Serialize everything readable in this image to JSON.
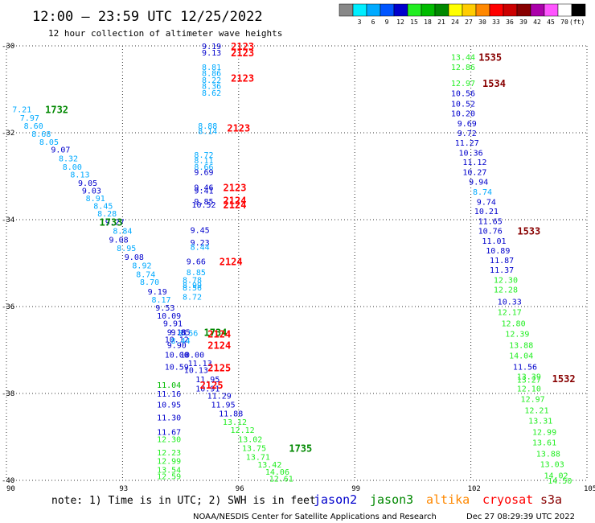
{
  "header": {
    "title": "12:00 – 23:59 UTC 12/25/2022",
    "subtitle": "12 hour collection of altimeter wave heights"
  },
  "legend": {
    "unit": "(ft)",
    "bins": [
      {
        "color": "#888888",
        "label": ""
      },
      {
        "color": "#00eeff",
        "label": "3"
      },
      {
        "color": "#00aaff",
        "label": "6"
      },
      {
        "color": "#0055ff",
        "label": "9"
      },
      {
        "color": "#0000cc",
        "label": "12"
      },
      {
        "color": "#22ee22",
        "label": "15"
      },
      {
        "color": "#00bb00",
        "label": "18"
      },
      {
        "color": "#008800",
        "label": "21"
      },
      {
        "color": "#ffff00",
        "label": "24"
      },
      {
        "color": "#ffcc00",
        "label": "27"
      },
      {
        "color": "#ff8800",
        "label": "30"
      },
      {
        "color": "#ff0000",
        "label": "33"
      },
      {
        "color": "#cc0000",
        "label": "36"
      },
      {
        "color": "#880000",
        "label": "39"
      },
      {
        "color": "#aa00aa",
        "label": "42"
      },
      {
        "color": "#ff55ff",
        "label": "45"
      },
      {
        "color": "#ffffff",
        "label": "70"
      },
      {
        "color": "#000000",
        "label": ""
      }
    ]
  },
  "note": "note: 1) Time is in UTC; 2) SWH is in feet",
  "satellites": [
    {
      "name": "jason2",
      "color": "#0000cc"
    },
    {
      "name": "jason3",
      "color": "#008800"
    },
    {
      "name": "altika",
      "color": "#ff8800"
    },
    {
      "name": "cryosat",
      "color": "#ff0000"
    },
    {
      "name": "s3a",
      "color": "#880000"
    }
  ],
  "footer": {
    "credit": "NOAA/NESDIS Center for Satellite Applications and Research",
    "timestamp": "Dec 27 08:29:39 UTC 2022"
  },
  "chart_data": {
    "type": "scatter",
    "title": "12:00 – 23:59 UTC 12/25/2022",
    "subtitle": "12 hour collection of altimeter wave heights",
    "xlim": [
      90,
      105
    ],
    "ylim": [
      -40,
      -30
    ],
    "xticks": [
      90,
      93,
      96,
      99,
      102,
      105
    ],
    "yticks": [
      -30,
      -32,
      -34,
      -36,
      -38,
      -40
    ],
    "xtick_labels": [
      "90",
      "93",
      "96",
      "99",
      "102",
      "105"
    ],
    "ytick_labels": [
      "-30",
      "-32",
      "-34",
      "-36",
      "-38",
      "-40"
    ],
    "grid": true,
    "points": [
      {
        "x": 95.3,
        "y": -30.0,
        "v": "9.19",
        "c": "#0000cc"
      },
      {
        "x": 95.3,
        "y": -30.15,
        "v": "9.13",
        "c": "#0000cc"
      },
      {
        "x": 95.3,
        "y": -30.48,
        "v": "8.81",
        "c": "#00aaff"
      },
      {
        "x": 95.3,
        "y": -30.62,
        "v": "8.86",
        "c": "#00aaff"
      },
      {
        "x": 95.3,
        "y": -30.78,
        "v": "8.22",
        "c": "#00aaff"
      },
      {
        "x": 95.3,
        "y": -30.92,
        "v": "8.36",
        "c": "#00aaff"
      },
      {
        "x": 95.3,
        "y": -31.07,
        "v": "8.62",
        "c": "#00aaff"
      },
      {
        "x": 95.2,
        "y": -31.83,
        "v": "8.88",
        "c": "#00aaff"
      },
      {
        "x": 95.2,
        "y": -31.95,
        "v": "8.14",
        "c": "#00aaff"
      },
      {
        "x": 95.1,
        "y": -32.5,
        "v": "8.72",
        "c": "#00aaff"
      },
      {
        "x": 95.1,
        "y": -32.63,
        "v": "8.11",
        "c": "#00aaff"
      },
      {
        "x": 95.1,
        "y": -32.78,
        "v": "8.66",
        "c": "#00aaff"
      },
      {
        "x": 95.1,
        "y": -32.9,
        "v": "9.69",
        "c": "#0000cc"
      },
      {
        "x": 95.1,
        "y": -33.25,
        "v": "9.46",
        "c": "#0000cc"
      },
      {
        "x": 95.1,
        "y": -33.32,
        "v": "9.41",
        "c": "#0000cc"
      },
      {
        "x": 95.1,
        "y": -33.57,
        "v": "9.85",
        "c": "#0000cc"
      },
      {
        "x": 95.1,
        "y": -33.65,
        "v": "10.52",
        "c": "#0000cc"
      },
      {
        "x": 95.0,
        "y": -34.23,
        "v": "9.45",
        "c": "#0000cc"
      },
      {
        "x": 95.0,
        "y": -34.52,
        "v": "9.23",
        "c": "#0000cc"
      },
      {
        "x": 95.0,
        "y": -34.62,
        "v": "8.44",
        "c": "#00aaff"
      },
      {
        "x": 94.9,
        "y": -34.95,
        "v": "9.66",
        "c": "#0000cc"
      },
      {
        "x": 94.9,
        "y": -35.2,
        "v": "8.85",
        "c": "#00aaff"
      },
      {
        "x": 94.8,
        "y": -35.38,
        "v": "8.78",
        "c": "#00aaff"
      },
      {
        "x": 94.8,
        "y": -35.5,
        "v": "8.99",
        "c": "#00aaff"
      },
      {
        "x": 94.8,
        "y": -35.56,
        "v": "8.56",
        "c": "#00aaff"
      },
      {
        "x": 94.8,
        "y": -35.77,
        "v": "8.72",
        "c": "#00aaff"
      },
      {
        "x": 94.4,
        "y": -36.58,
        "v": "9.18",
        "c": "#0000cc"
      },
      {
        "x": 94.7,
        "y": -36.6,
        "v": "8.56",
        "c": "#00aaff"
      },
      {
        "x": 94.4,
        "y": -36.75,
        "v": "10.12",
        "c": "#0000cc"
      },
      {
        "x": 94.4,
        "y": -36.88,
        "v": "9.90",
        "c": "#0000cc"
      },
      {
        "x": 94.4,
        "y": -37.1,
        "v": "10.00",
        "c": "#0000cc"
      },
      {
        "x": 94.8,
        "y": -37.1,
        "v": "10.00",
        "c": "#0000cc"
      },
      {
        "x": 95.0,
        "y": -37.3,
        "v": "11.13",
        "c": "#0000cc"
      },
      {
        "x": 94.4,
        "y": -37.38,
        "v": "10.59",
        "c": "#0000cc"
      },
      {
        "x": 94.9,
        "y": -37.45,
        "v": "10.13",
        "c": "#0000cc"
      },
      {
        "x": 95.2,
        "y": -37.67,
        "v": "11.95",
        "c": "#0000cc"
      },
      {
        "x": 94.2,
        "y": -37.8,
        "v": "11.04",
        "c": "#00bb00"
      },
      {
        "x": 95.2,
        "y": -37.88,
        "v": "10.91",
        "c": "#0000cc"
      },
      {
        "x": 94.2,
        "y": -38.0,
        "v": "11.16",
        "c": "#0000cc"
      },
      {
        "x": 95.5,
        "y": -38.05,
        "v": "11.29",
        "c": "#0000cc"
      },
      {
        "x": 94.2,
        "y": -38.25,
        "v": "10.95",
        "c": "#0000cc"
      },
      {
        "x": 95.6,
        "y": -38.25,
        "v": "11.95",
        "c": "#0000cc"
      },
      {
        "x": 95.8,
        "y": -38.45,
        "v": "11.88",
        "c": "#0000cc"
      },
      {
        "x": 94.2,
        "y": -38.55,
        "v": "11.30",
        "c": "#0000cc"
      },
      {
        "x": 95.9,
        "y": -38.65,
        "v": "13.12",
        "c": "#22ee22"
      },
      {
        "x": 96.1,
        "y": -38.83,
        "v": "12.12",
        "c": "#22ee22"
      },
      {
        "x": 94.2,
        "y": -38.88,
        "v": "11.67",
        "c": "#0000cc"
      },
      {
        "x": 94.2,
        "y": -39.05,
        "v": "12.30",
        "c": "#22ee22"
      },
      {
        "x": 96.3,
        "y": -39.05,
        "v": "13.02",
        "c": "#22ee22"
      },
      {
        "x": 96.4,
        "y": -39.25,
        "v": "13.75",
        "c": "#22ee22"
      },
      {
        "x": 94.2,
        "y": -39.35,
        "v": "12.23",
        "c": "#22ee22"
      },
      {
        "x": 96.5,
        "y": -39.45,
        "v": "13.71",
        "c": "#22ee22"
      },
      {
        "x": 94.2,
        "y": -39.55,
        "v": "12.99",
        "c": "#22ee22"
      },
      {
        "x": 96.8,
        "y": -39.63,
        "v": "13.42",
        "c": "#22ee22"
      },
      {
        "x": 94.2,
        "y": -39.75,
        "v": "13.54",
        "c": "#22ee22"
      },
      {
        "x": 97.0,
        "y": -39.8,
        "v": "14.06",
        "c": "#22ee22"
      },
      {
        "x": 94.2,
        "y": -39.9,
        "v": "12.59",
        "c": "#22ee22"
      },
      {
        "x": 97.1,
        "y": -39.95,
        "v": "12.61",
        "c": "#22ee22"
      },
      {
        "x": 90.4,
        "y": -31.45,
        "v": "7.21",
        "c": "#00aaff"
      },
      {
        "x": 90.6,
        "y": -31.65,
        "v": "7.97",
        "c": "#00aaff"
      },
      {
        "x": 90.7,
        "y": -31.83,
        "v": "8.60",
        "c": "#00aaff"
      },
      {
        "x": 90.9,
        "y": -32.02,
        "v": "8.68",
        "c": "#00aaff"
      },
      {
        "x": 91.1,
        "y": -32.2,
        "v": "8.05",
        "c": "#00aaff"
      },
      {
        "x": 91.4,
        "y": -32.38,
        "v": "9.07",
        "c": "#0000cc"
      },
      {
        "x": 91.6,
        "y": -32.58,
        "v": "8.32",
        "c": "#00aaff"
      },
      {
        "x": 91.7,
        "y": -32.78,
        "v": "8.00",
        "c": "#00aaff"
      },
      {
        "x": 91.9,
        "y": -32.95,
        "v": "8.13",
        "c": "#00aaff"
      },
      {
        "x": 92.1,
        "y": -33.15,
        "v": "9.05",
        "c": "#0000cc"
      },
      {
        "x": 92.2,
        "y": -33.32,
        "v": "9.03",
        "c": "#0000cc"
      },
      {
        "x": 92.3,
        "y": -33.5,
        "v": "8.91",
        "c": "#00aaff"
      },
      {
        "x": 92.5,
        "y": -33.68,
        "v": "8.45",
        "c": "#00aaff"
      },
      {
        "x": 92.6,
        "y": -33.85,
        "v": "8.28",
        "c": "#00aaff"
      },
      {
        "x": 92.8,
        "y": -34.05,
        "v": "9.27",
        "c": "#0000cc"
      },
      {
        "x": 93.0,
        "y": -34.25,
        "v": "8.84",
        "c": "#00aaff"
      },
      {
        "x": 92.9,
        "y": -34.45,
        "v": "9.08",
        "c": "#0000cc"
      },
      {
        "x": 93.1,
        "y": -34.65,
        "v": "8.95",
        "c": "#00aaff"
      },
      {
        "x": 93.3,
        "y": -34.85,
        "v": "9.08",
        "c": "#0000cc"
      },
      {
        "x": 93.5,
        "y": -35.05,
        "v": "8.92",
        "c": "#00aaff"
      },
      {
        "x": 93.6,
        "y": -35.25,
        "v": "8.74",
        "c": "#00aaff"
      },
      {
        "x": 93.7,
        "y": -35.43,
        "v": "8.70",
        "c": "#00aaff"
      },
      {
        "x": 93.9,
        "y": -35.65,
        "v": "9.19",
        "c": "#0000cc"
      },
      {
        "x": 94.0,
        "y": -35.83,
        "v": "8.17",
        "c": "#00aaff"
      },
      {
        "x": 94.1,
        "y": -36.02,
        "v": "9.53",
        "c": "#0000cc"
      },
      {
        "x": 94.2,
        "y": -36.2,
        "v": "10.09",
        "c": "#0000cc"
      },
      {
        "x": 94.3,
        "y": -36.38,
        "v": "9.91",
        "c": "#0000cc"
      },
      {
        "x": 94.5,
        "y": -36.58,
        "v": "9.85",
        "c": "#0000cc"
      },
      {
        "x": 94.5,
        "y": -36.78,
        "v": "8.44",
        "c": "#00aaff"
      },
      {
        "x": 101.8,
        "y": -30.25,
        "v": "13.44",
        "c": "#22ee22"
      },
      {
        "x": 101.8,
        "y": -30.48,
        "v": "12.86",
        "c": "#22ee22"
      },
      {
        "x": 101.8,
        "y": -30.85,
        "v": "12.97",
        "c": "#22ee22"
      },
      {
        "x": 101.8,
        "y": -31.08,
        "v": "10.56",
        "c": "#0000cc"
      },
      {
        "x": 101.8,
        "y": -31.32,
        "v": "10.52",
        "c": "#0000cc"
      },
      {
        "x": 101.8,
        "y": -31.55,
        "v": "10.20",
        "c": "#0000cc"
      },
      {
        "x": 101.9,
        "y": -31.78,
        "v": "9.69",
        "c": "#0000cc"
      },
      {
        "x": 101.9,
        "y": -32.0,
        "v": "9.72",
        "c": "#0000cc"
      },
      {
        "x": 101.9,
        "y": -32.22,
        "v": "11.27",
        "c": "#0000cc"
      },
      {
        "x": 102.0,
        "y": -32.45,
        "v": "10.36",
        "c": "#0000cc"
      },
      {
        "x": 102.1,
        "y": -32.67,
        "v": "11.12",
        "c": "#0000cc"
      },
      {
        "x": 102.1,
        "y": -32.9,
        "v": "10.27",
        "c": "#0000cc"
      },
      {
        "x": 102.2,
        "y": -33.12,
        "v": "9.94",
        "c": "#0000cc"
      },
      {
        "x": 102.3,
        "y": -33.35,
        "v": "8.74",
        "c": "#00aaff"
      },
      {
        "x": 102.4,
        "y": -33.58,
        "v": "9.74",
        "c": "#0000cc"
      },
      {
        "x": 102.4,
        "y": -33.8,
        "v": "10.21",
        "c": "#0000cc"
      },
      {
        "x": 102.5,
        "y": -34.03,
        "v": "11.65",
        "c": "#0000cc"
      },
      {
        "x": 102.5,
        "y": -34.25,
        "v": "10.76",
        "c": "#0000cc"
      },
      {
        "x": 102.6,
        "y": -34.48,
        "v": "11.01",
        "c": "#0000cc"
      },
      {
        "x": 102.7,
        "y": -34.7,
        "v": "10.89",
        "c": "#0000cc"
      },
      {
        "x": 102.8,
        "y": -34.93,
        "v": "11.87",
        "c": "#0000cc"
      },
      {
        "x": 102.8,
        "y": -35.15,
        "v": "11.37",
        "c": "#0000cc"
      },
      {
        "x": 102.9,
        "y": -35.38,
        "v": "12.30",
        "c": "#22ee22"
      },
      {
        "x": 102.9,
        "y": -35.6,
        "v": "12.28",
        "c": "#22ee22"
      },
      {
        "x": 103.0,
        "y": -35.88,
        "v": "10.33",
        "c": "#0000cc"
      },
      {
        "x": 103.0,
        "y": -36.12,
        "v": "12.17",
        "c": "#22ee22"
      },
      {
        "x": 103.1,
        "y": -36.38,
        "v": "12.80",
        "c": "#22ee22"
      },
      {
        "x": 103.2,
        "y": -36.62,
        "v": "12.39",
        "c": "#22ee22"
      },
      {
        "x": 103.3,
        "y": -36.88,
        "v": "13.88",
        "c": "#22ee22"
      },
      {
        "x": 103.3,
        "y": -37.12,
        "v": "14.04",
        "c": "#22ee22"
      },
      {
        "x": 103.4,
        "y": -37.38,
        "v": "11.56",
        "c": "#0000cc"
      },
      {
        "x": 103.5,
        "y": -37.6,
        "v": "13.39",
        "c": "#22ee22"
      },
      {
        "x": 103.5,
        "y": -37.68,
        "v": "13.27",
        "c": "#22ee22"
      },
      {
        "x": 103.5,
        "y": -37.88,
        "v": "12.10",
        "c": "#22ee22"
      },
      {
        "x": 103.6,
        "y": -38.12,
        "v": "12.97",
        "c": "#22ee22"
      },
      {
        "x": 103.7,
        "y": -38.38,
        "v": "12.21",
        "c": "#22ee22"
      },
      {
        "x": 103.8,
        "y": -38.62,
        "v": "13.31",
        "c": "#22ee22"
      },
      {
        "x": 103.9,
        "y": -38.88,
        "v": "12.99",
        "c": "#22ee22"
      },
      {
        "x": 103.9,
        "y": -39.12,
        "v": "13.61",
        "c": "#22ee22"
      },
      {
        "x": 104.0,
        "y": -39.38,
        "v": "13.88",
        "c": "#22ee22"
      },
      {
        "x": 104.1,
        "y": -39.62,
        "v": "13.03",
        "c": "#22ee22"
      },
      {
        "x": 104.2,
        "y": -39.88,
        "v": "14.02",
        "c": "#22ee22"
      },
      {
        "x": 104.3,
        "y": -40.0,
        "v": "14.50",
        "c": "#22ee22"
      }
    ],
    "time_labels": [
      {
        "x": 95.8,
        "y": -30.0,
        "v": "2123",
        "c": "#ff0000"
      },
      {
        "x": 95.8,
        "y": -30.15,
        "v": "2123",
        "c": "#ff0000"
      },
      {
        "x": 95.8,
        "y": -30.73,
        "v": "2123",
        "c": "#ff0000"
      },
      {
        "x": 95.7,
        "y": -31.88,
        "v": "2123",
        "c": "#ff0000"
      },
      {
        "x": 95.6,
        "y": -33.25,
        "v": "2123",
        "c": "#ff0000"
      },
      {
        "x": 95.6,
        "y": -33.55,
        "v": "2124",
        "c": "#ff0000"
      },
      {
        "x": 95.6,
        "y": -33.65,
        "v": "2124",
        "c": "#ff0000"
      },
      {
        "x": 95.5,
        "y": -34.95,
        "v": "2124",
        "c": "#ff0000"
      },
      {
        "x": 95.1,
        "y": -36.58,
        "v": "1734",
        "c": "#008800"
      },
      {
        "x": 95.2,
        "y": -36.62,
        "v": "2124",
        "c": "#ff0000"
      },
      {
        "x": 95.2,
        "y": -36.88,
        "v": "2124",
        "c": "#ff0000"
      },
      {
        "x": 95.2,
        "y": -37.4,
        "v": "2125",
        "c": "#ff0000"
      },
      {
        "x": 95.0,
        "y": -37.8,
        "v": "2125",
        "c": "#ff0000"
      },
      {
        "x": 91.0,
        "y": -31.45,
        "v": "1732",
        "c": "#008800"
      },
      {
        "x": 92.4,
        "y": -34.05,
        "v": "1733",
        "c": "#008800"
      },
      {
        "x": 97.3,
        "y": -39.25,
        "v": "1735",
        "c": "#008800"
      },
      {
        "x": 102.2,
        "y": -30.25,
        "v": "1535",
        "c": "#880000"
      },
      {
        "x": 102.3,
        "y": -30.85,
        "v": "1534",
        "c": "#880000"
      },
      {
        "x": 103.2,
        "y": -34.25,
        "v": "1533",
        "c": "#880000"
      },
      {
        "x": 104.1,
        "y": -37.65,
        "v": "1532",
        "c": "#880000"
      }
    ]
  }
}
